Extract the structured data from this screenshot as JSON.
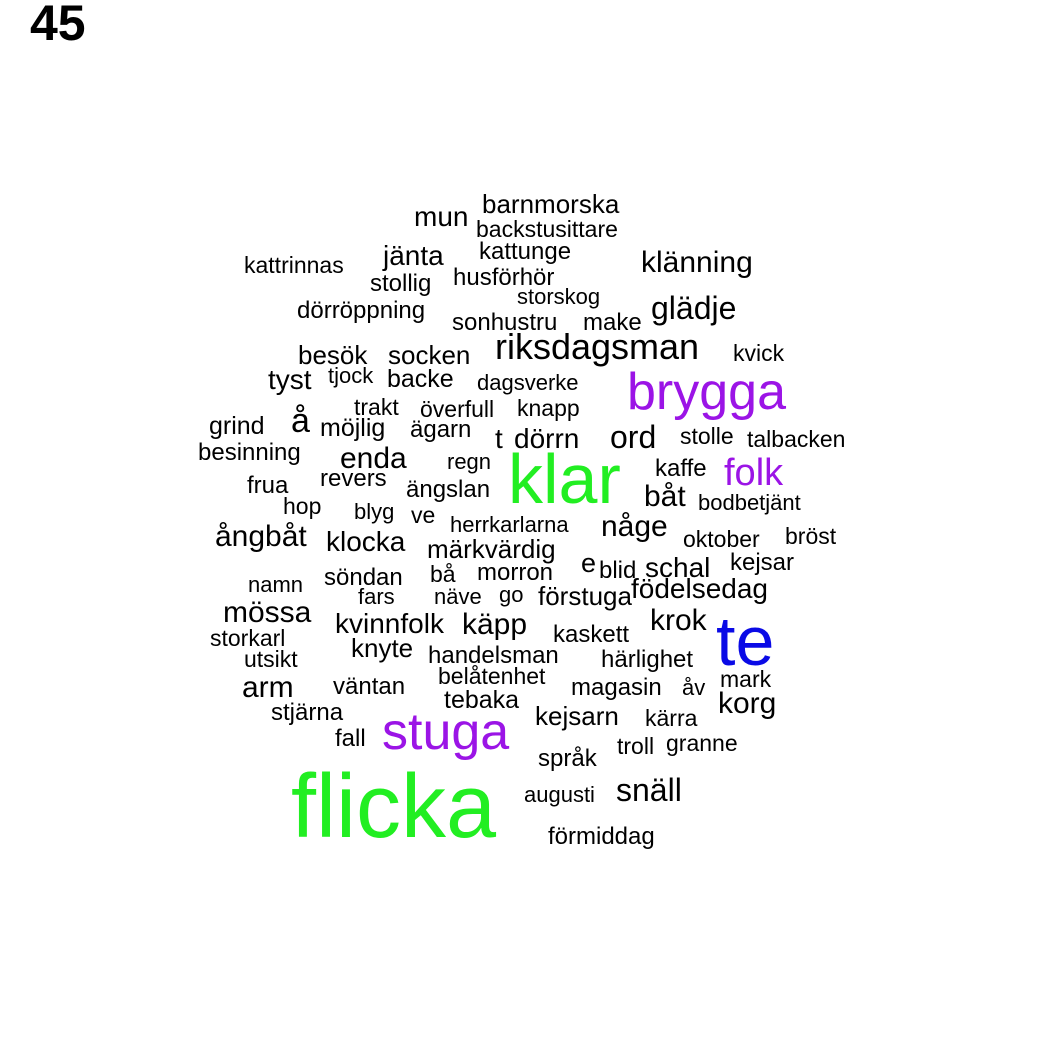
{
  "page_number": "45",
  "colors": {
    "green": "#22ee22",
    "purple": "#9b14e6",
    "blue": "#0a0ae6",
    "black": "#000000"
  },
  "words": [
    {
      "text": "barnmorska",
      "color": "black",
      "weight": 2
    },
    {
      "text": "mun",
      "color": "black",
      "weight": 3
    },
    {
      "text": "backstusittare",
      "color": "black",
      "weight": 2
    },
    {
      "text": "kattrinnas",
      "color": "black",
      "weight": 2
    },
    {
      "text": "jänta",
      "color": "black",
      "weight": 3
    },
    {
      "text": "kattunge",
      "color": "black",
      "weight": 2
    },
    {
      "text": "klänning",
      "color": "black",
      "weight": 3
    },
    {
      "text": "stollig",
      "color": "black",
      "weight": 2
    },
    {
      "text": "husförhör",
      "color": "black",
      "weight": 2
    },
    {
      "text": "storskog",
      "color": "black",
      "weight": 2
    },
    {
      "text": "dörröppning",
      "color": "black",
      "weight": 2
    },
    {
      "text": "sonhustru",
      "color": "black",
      "weight": 2
    },
    {
      "text": "make",
      "color": "black",
      "weight": 2
    },
    {
      "text": "glädje",
      "color": "black",
      "weight": 3
    },
    {
      "text": "besök",
      "color": "black",
      "weight": 2
    },
    {
      "text": "socken",
      "color": "black",
      "weight": 2
    },
    {
      "text": "riksdagsman",
      "color": "black",
      "weight": 4
    },
    {
      "text": "kvick",
      "color": "black",
      "weight": 2
    },
    {
      "text": "tyst",
      "color": "black",
      "weight": 3
    },
    {
      "text": "tjock",
      "color": "black",
      "weight": 2
    },
    {
      "text": "backe",
      "color": "black",
      "weight": 2
    },
    {
      "text": "dagsverke",
      "color": "black",
      "weight": 2
    },
    {
      "text": "brygga",
      "color": "purple",
      "weight": 6
    },
    {
      "text": "å",
      "color": "black",
      "weight": 4
    },
    {
      "text": "trakt",
      "color": "black",
      "weight": 2
    },
    {
      "text": "överfull",
      "color": "black",
      "weight": 2
    },
    {
      "text": "knapp",
      "color": "black",
      "weight": 2
    },
    {
      "text": "grind",
      "color": "black",
      "weight": 2
    },
    {
      "text": "möjlig",
      "color": "black",
      "weight": 2
    },
    {
      "text": "ägarn",
      "color": "black",
      "weight": 2
    },
    {
      "text": "t",
      "color": "black",
      "weight": 3
    },
    {
      "text": "dörrn",
      "color": "black",
      "weight": 3
    },
    {
      "text": "ord",
      "color": "black",
      "weight": 3
    },
    {
      "text": "stolle",
      "color": "black",
      "weight": 2
    },
    {
      "text": "talbacken",
      "color": "black",
      "weight": 2
    },
    {
      "text": "besinning",
      "color": "black",
      "weight": 2
    },
    {
      "text": "enda",
      "color": "black",
      "weight": 3
    },
    {
      "text": "regn",
      "color": "black",
      "weight": 2
    },
    {
      "text": "klar",
      "color": "green",
      "weight": 8
    },
    {
      "text": "kaffe",
      "color": "black",
      "weight": 2
    },
    {
      "text": "folk",
      "color": "purple",
      "weight": 4
    },
    {
      "text": "frua",
      "color": "black",
      "weight": 2
    },
    {
      "text": "revers",
      "color": "black",
      "weight": 2
    },
    {
      "text": "ängslan",
      "color": "black",
      "weight": 2
    },
    {
      "text": "båt",
      "color": "black",
      "weight": 3
    },
    {
      "text": "hop",
      "color": "black",
      "weight": 2
    },
    {
      "text": "bodbetjänt",
      "color": "black",
      "weight": 2
    },
    {
      "text": "blyg",
      "color": "black",
      "weight": 2
    },
    {
      "text": "ve",
      "color": "black",
      "weight": 2
    },
    {
      "text": "herrkarlarna",
      "color": "black",
      "weight": 2
    },
    {
      "text": "någe",
      "color": "black",
      "weight": 3
    },
    {
      "text": "ångbåt",
      "color": "black",
      "weight": 3
    },
    {
      "text": "klocka",
      "color": "black",
      "weight": 3
    },
    {
      "text": "oktober",
      "color": "black",
      "weight": 2
    },
    {
      "text": "bröst",
      "color": "black",
      "weight": 2
    },
    {
      "text": "märkvärdig",
      "color": "black",
      "weight": 2
    },
    {
      "text": "e",
      "color": "black",
      "weight": 3
    },
    {
      "text": "blid",
      "color": "black",
      "weight": 2
    },
    {
      "text": "schal",
      "color": "black",
      "weight": 3
    },
    {
      "text": "kejsar",
      "color": "black",
      "weight": 2
    },
    {
      "text": "söndan",
      "color": "black",
      "weight": 2
    },
    {
      "text": "bå",
      "color": "black",
      "weight": 2
    },
    {
      "text": "morron",
      "color": "black",
      "weight": 2
    },
    {
      "text": "namn",
      "color": "black",
      "weight": 2
    },
    {
      "text": "födelsedag",
      "color": "black",
      "weight": 3
    },
    {
      "text": "fars",
      "color": "black",
      "weight": 2
    },
    {
      "text": "näve",
      "color": "black",
      "weight": 2
    },
    {
      "text": "go",
      "color": "black",
      "weight": 2
    },
    {
      "text": "förstuga",
      "color": "black",
      "weight": 2
    },
    {
      "text": "mössa",
      "color": "black",
      "weight": 3
    },
    {
      "text": "kvinnfolk",
      "color": "black",
      "weight": 3
    },
    {
      "text": "käpp",
      "color": "black",
      "weight": 3
    },
    {
      "text": "krok",
      "color": "black",
      "weight": 3
    },
    {
      "text": "te",
      "color": "blue",
      "weight": 7
    },
    {
      "text": "storkarl",
      "color": "black",
      "weight": 2
    },
    {
      "text": "kaskett",
      "color": "black",
      "weight": 2
    },
    {
      "text": "knyte",
      "color": "black",
      "weight": 2
    },
    {
      "text": "utsikt",
      "color": "black",
      "weight": 2
    },
    {
      "text": "handelsman",
      "color": "black",
      "weight": 2
    },
    {
      "text": "härlighet",
      "color": "black",
      "weight": 2
    },
    {
      "text": "belåtenhet",
      "color": "black",
      "weight": 2
    },
    {
      "text": "mark",
      "color": "black",
      "weight": 2
    },
    {
      "text": "arm",
      "color": "black",
      "weight": 3
    },
    {
      "text": "väntan",
      "color": "black",
      "weight": 2
    },
    {
      "text": "magasin",
      "color": "black",
      "weight": 2
    },
    {
      "text": "åv",
      "color": "black",
      "weight": 2
    },
    {
      "text": "tebaka",
      "color": "black",
      "weight": 2
    },
    {
      "text": "korg",
      "color": "black",
      "weight": 3
    },
    {
      "text": "stjärna",
      "color": "black",
      "weight": 2
    },
    {
      "text": "kejsarn",
      "color": "black",
      "weight": 2
    },
    {
      "text": "kärra",
      "color": "black",
      "weight": 2
    },
    {
      "text": "stuga",
      "color": "purple",
      "weight": 6
    },
    {
      "text": "fall",
      "color": "black",
      "weight": 2
    },
    {
      "text": "troll",
      "color": "black",
      "weight": 2
    },
    {
      "text": "granne",
      "color": "black",
      "weight": 2
    },
    {
      "text": "språk",
      "color": "black",
      "weight": 2
    },
    {
      "text": "snäll",
      "color": "black",
      "weight": 3
    },
    {
      "text": "flicka",
      "color": "green",
      "weight": 10
    },
    {
      "text": "augusti",
      "color": "black",
      "weight": 2
    },
    {
      "text": "förmiddag",
      "color": "black",
      "weight": 2
    }
  ]
}
